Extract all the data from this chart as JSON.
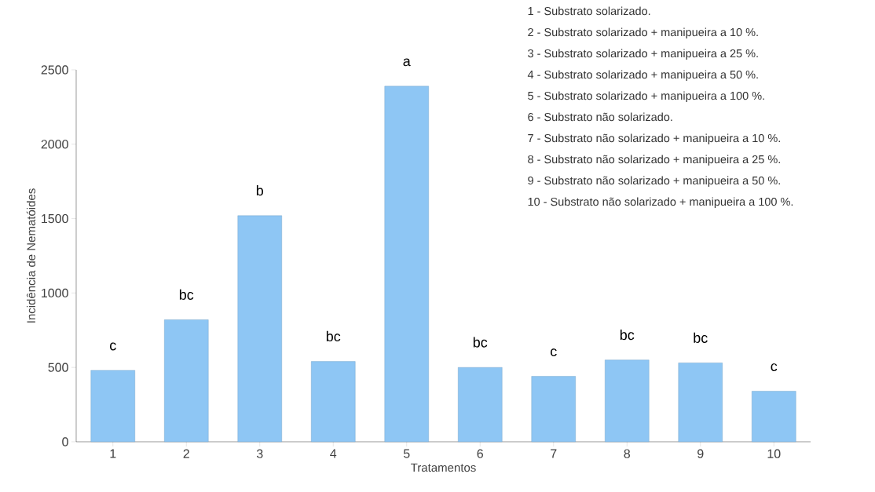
{
  "chart_data": {
    "type": "bar",
    "xlabel": "Tratamentos",
    "ylabel": "Incidência de Nematóides",
    "categories": [
      "1",
      "2",
      "3",
      "4",
      "5",
      "6",
      "7",
      "8",
      "9",
      "10"
    ],
    "values": [
      480,
      820,
      1520,
      540,
      2390,
      500,
      440,
      550,
      530,
      340
    ],
    "color": "#8ec6f4",
    "ylim": [
      0,
      2500
    ],
    "yticks": [
      0,
      500,
      1000,
      1500,
      2000,
      2500
    ],
    "grid": false,
    "annotations": [
      {
        "text": "c",
        "x": "1",
        "y": 480
      },
      {
        "text": "bc",
        "x": "2",
        "y": 820
      },
      {
        "text": "b",
        "x": "3",
        "y": 1520
      },
      {
        "text": "bc",
        "x": "4",
        "y": 540
      },
      {
        "text": "a",
        "x": "5",
        "y": 2390
      },
      {
        "text": "bc",
        "x": "6",
        "y": 500
      },
      {
        "text": "c",
        "x": "7",
        "y": 440
      },
      {
        "text": "bc",
        "x": "8",
        "y": 550
      },
      {
        "text": "bc",
        "x": "9",
        "y": 530
      },
      {
        "text": "c",
        "x": "10",
        "y": 340
      },
      "1 - Substrato solarizado.",
      "2 - Substrato solarizado + manipueira a 10 %.",
      "3 - Substrato solarizado + manipueira a 25 %.",
      "4 - Substrato solarizado + manipueira a 50 %.",
      "5 - Substrato solarizado + manipueira a 100 %.",
      "6 - Substrato não solarizado.",
      "7 - Substrato não solarizado + manipueira a 10 %.",
      "8 - Substrato não solarizado + manipueira a 25 %.",
      "9 - Substrato não solarizado + manipueira a 50 %.",
      "10 - Substrato não solarizado + manipueira a 100 %."
    ]
  }
}
